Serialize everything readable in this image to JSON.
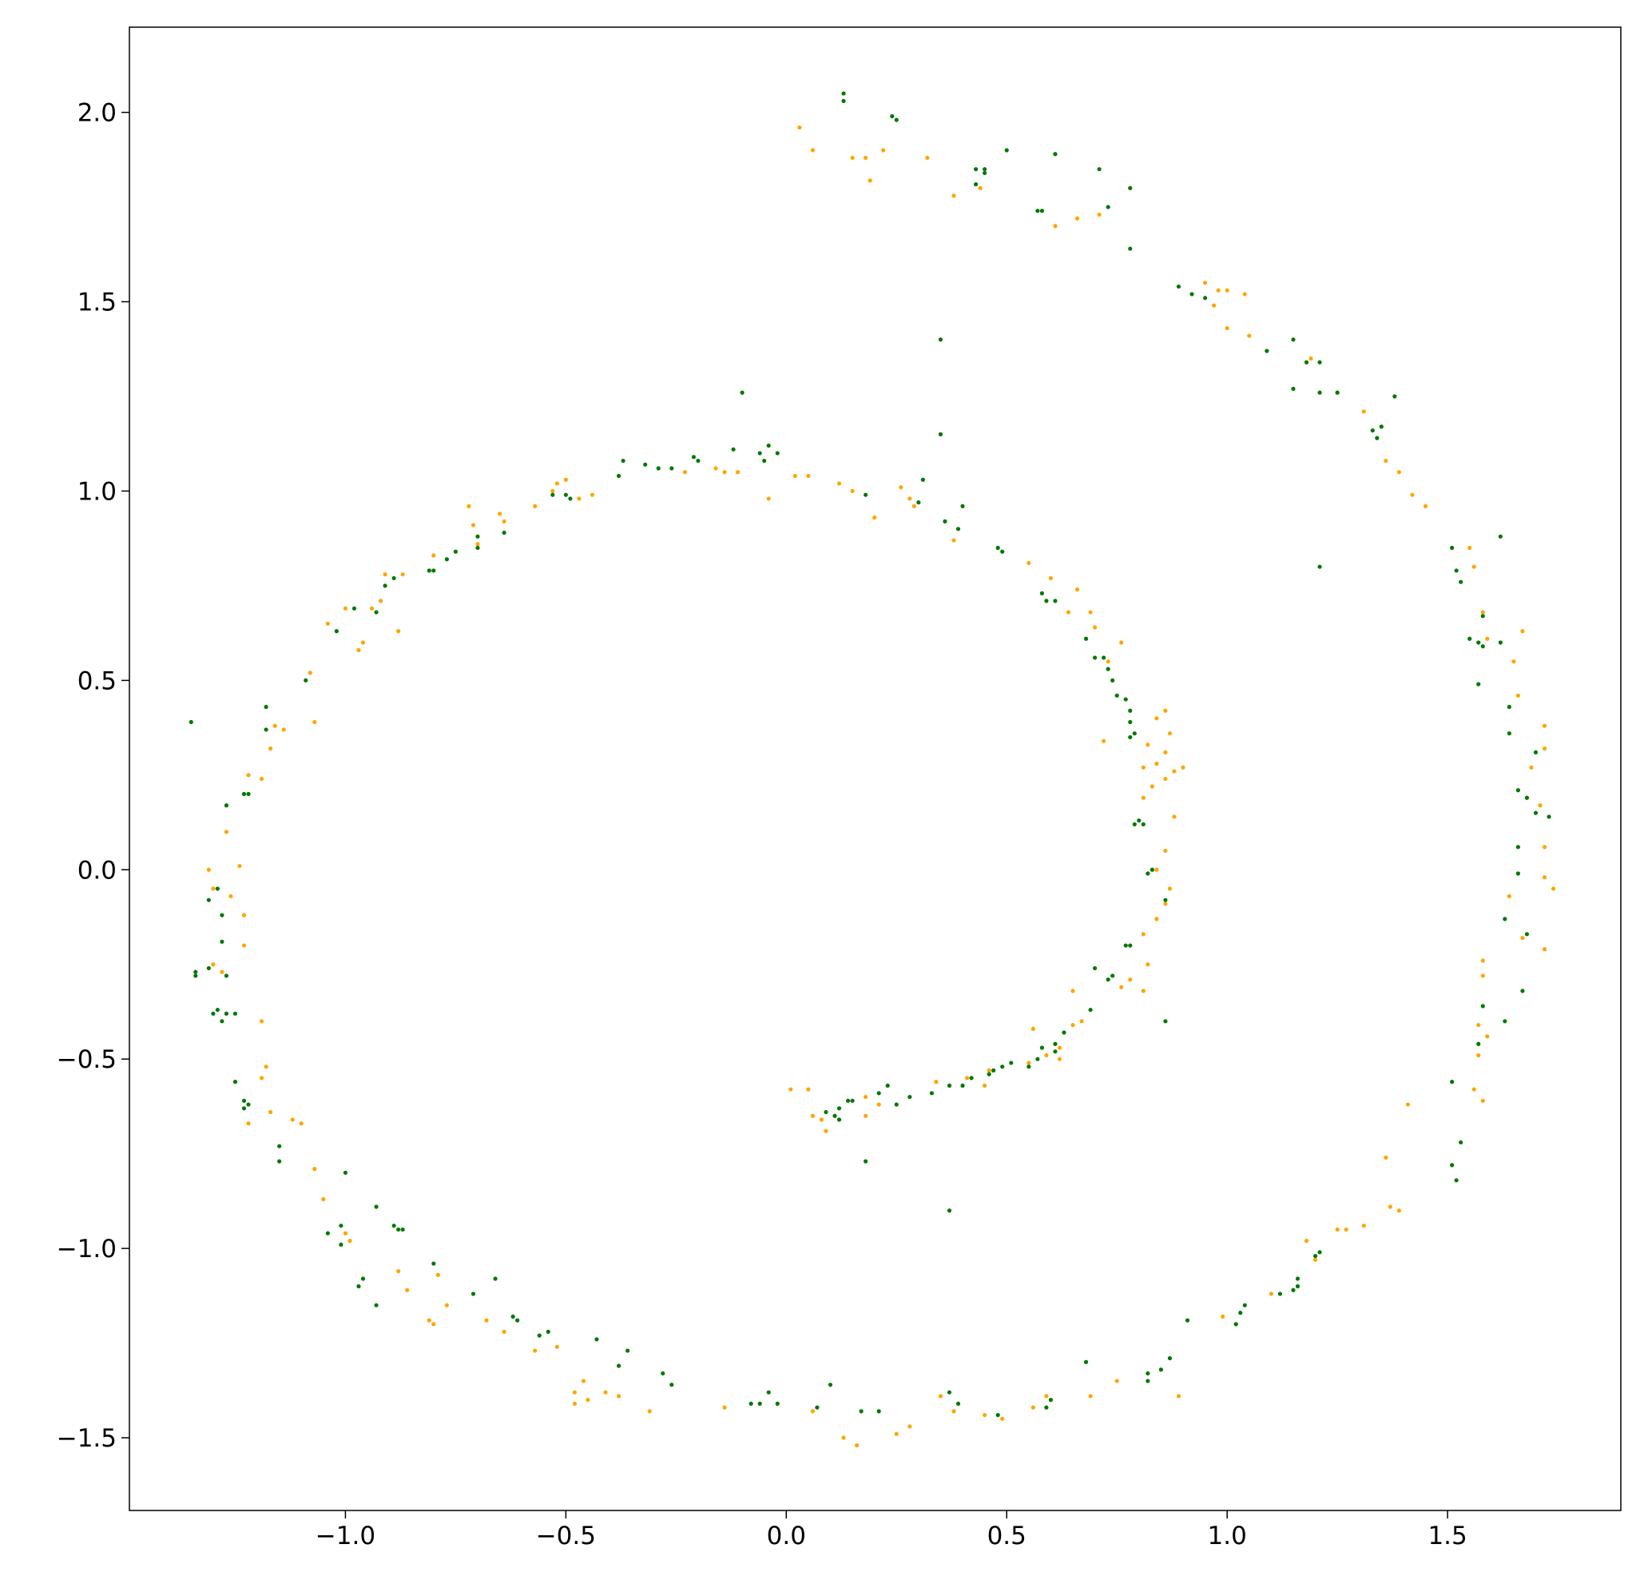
{
  "chart_data": {
    "type": "scatter",
    "xlim": [
      -1.49,
      1.893
    ],
    "ylim": [
      -1.692,
      2.225
    ],
    "xticks": [
      {
        "value": -1,
        "label": "−1.0"
      },
      {
        "value": -0.5,
        "label": "−0.5"
      },
      {
        "value": 0,
        "label": "0.0"
      },
      0.5,
      {
        "value": 1,
        "label": "1.0"
      },
      1.5
    ],
    "yticks": [
      {
        "value": -1.5,
        "label": "−1.5"
      },
      {
        "value": -1,
        "label": "−1.0"
      },
      {
        "value": -0.5,
        "label": "−0.5"
      },
      {
        "value": 0,
        "label": "0.0"
      },
      0.5,
      {
        "value": 1,
        "label": "1.0"
      },
      1.5,
      {
        "value": 2,
        "label": "2.0"
      }
    ],
    "series": [
      {
        "color": "#ffa500",
        "x": [
          0.03,
          0.06,
          0.15,
          0.19,
          0.18,
          0.22,
          0.32,
          0.38,
          0.44,
          0.61,
          0.66,
          0.71,
          0.95,
          0.98,
          1.0,
          1.04,
          0.97,
          1.0,
          1.05,
          1.19,
          1.25,
          1.31,
          1.36,
          1.39,
          1.42,
          1.45,
          1.55,
          1.56,
          1.58,
          1.59,
          1.65,
          1.67,
          1.66,
          1.69,
          1.72,
          1.72,
          1.71,
          1.72,
          1.72,
          1.74,
          1.64,
          1.67,
          1.72,
          1.58,
          1.58,
          1.57,
          1.57,
          1.59,
          1.56,
          1.58,
          1.41,
          1.36,
          1.37,
          1.39,
          1.27,
          1.25,
          1.31,
          1.18,
          1.2,
          1.1,
          1.02,
          0.99,
          0.89,
          0.75,
          0.69,
          0.59,
          0.56,
          0.49,
          0.45,
          0.38,
          0.35,
          0.28,
          0.25,
          0.16,
          0.13,
          0.06,
          -0.14,
          -0.31,
          -0.38,
          -0.41,
          -0.45,
          -0.46,
          -0.48,
          -0.48,
          -0.52,
          -0.57,
          -0.64,
          -0.68,
          -0.77,
          -0.8,
          -0.81,
          -0.79,
          -0.86,
          -0.88,
          -0.99,
          -1.0,
          -1.05,
          -1.07,
          -1.1,
          -1.12,
          -1.17,
          -1.22,
          -1.19,
          -1.18,
          -1.19,
          -1.23,
          -1.23,
          -1.24,
          -1.26,
          -1.3,
          -1.31,
          -1.28,
          -1.3,
          -1.27,
          -1.22,
          -1.19,
          -1.17,
          -1.16,
          -1.14,
          -1.08,
          -1.07,
          -1.04,
          -1.0,
          -0.97,
          -0.96,
          -0.94,
          -0.92,
          -0.91,
          -0.87,
          -0.88,
          -0.8,
          -0.72,
          -0.71,
          -0.7,
          -0.65,
          -0.64,
          -0.57,
          -0.53,
          -0.52,
          -0.5,
          -0.47,
          -0.44,
          -0.23,
          -0.16,
          -0.14,
          -0.11,
          -0.04,
          0.02,
          0.05,
          0.12,
          0.15,
          0.2,
          0.26,
          0.28,
          0.29,
          0.38,
          0.55,
          0.6,
          0.66,
          0.64,
          0.69,
          0.7,
          0.76,
          0.73,
          0.72,
          0.82,
          0.84,
          0.86,
          0.87,
          0.86,
          0.84,
          0.81,
          0.86,
          0.83,
          0.88,
          0.9,
          0.81,
          0.88,
          0.86,
          0.84,
          0.87,
          0.86,
          0.84,
          0.81,
          0.82,
          0.78,
          0.76,
          0.81,
          0.65,
          0.65,
          0.67,
          0.62,
          0.62,
          0.59,
          0.56,
          0.55,
          0.46,
          0.45,
          0.41,
          0.34,
          0.18,
          0.21,
          0.18,
          0.09,
          0.08,
          0.06,
          0.01,
          0.05
        ],
        "values": [
          1.96,
          1.9,
          1.88,
          1.82,
          1.88,
          1.9,
          1.88,
          1.78,
          1.8,
          1.7,
          1.72,
          1.73,
          1.55,
          1.53,
          1.53,
          1.52,
          1.49,
          1.43,
          1.41,
          1.35,
          1.26,
          1.21,
          1.08,
          1.05,
          0.99,
          0.96,
          0.85,
          0.8,
          0.68,
          0.61,
          0.55,
          0.63,
          0.46,
          0.27,
          0.38,
          0.32,
          0.17,
          0.06,
          -0.02,
          -0.05,
          -0.07,
          -0.18,
          -0.21,
          -0.24,
          -0.28,
          -0.41,
          -0.49,
          -0.44,
          -0.58,
          -0.61,
          -0.62,
          -0.76,
          -0.89,
          -0.9,
          -0.95,
          -0.95,
          -0.94,
          -0.98,
          -1.03,
          -1.12,
          -1.2,
          -1.18,
          -1.39,
          -1.35,
          -1.39,
          -1.39,
          -1.42,
          -1.45,
          -1.44,
          -1.43,
          -1.39,
          -1.47,
          -1.49,
          -1.52,
          -1.5,
          -1.43,
          -1.42,
          -1.43,
          -1.39,
          -1.38,
          -1.4,
          -1.35,
          -1.41,
          -1.38,
          -1.26,
          -1.27,
          -1.22,
          -1.19,
          -1.15,
          -1.2,
          -1.19,
          -1.07,
          -1.11,
          -1.06,
          -0.98,
          -0.96,
          -0.87,
          -0.79,
          -0.67,
          -0.66,
          -0.64,
          -0.67,
          -0.55,
          -0.52,
          -0.4,
          -0.2,
          -0.12,
          0.01,
          -0.07,
          -0.05,
          0.0,
          -0.27,
          -0.25,
          0.1,
          0.25,
          0.24,
          0.32,
          0.38,
          0.37,
          0.52,
          0.39,
          0.65,
          0.69,
          0.58,
          0.6,
          0.69,
          0.71,
          0.78,
          0.78,
          0.63,
          0.83,
          0.96,
          0.91,
          0.86,
          0.94,
          0.92,
          0.96,
          1.0,
          1.02,
          1.03,
          0.98,
          0.99,
          1.05,
          1.06,
          1.05,
          1.05,
          0.98,
          1.04,
          1.04,
          1.02,
          1.0,
          0.93,
          1.01,
          0.98,
          0.96,
          0.87,
          0.81,
          0.77,
          0.74,
          0.68,
          0.68,
          0.64,
          0.6,
          0.55,
          0.34,
          0.33,
          0.4,
          0.42,
          0.36,
          0.31,
          0.28,
          0.27,
          0.24,
          0.22,
          0.26,
          0.27,
          0.19,
          0.14,
          0.05,
          0.0,
          -0.05,
          -0.09,
          -0.13,
          -0.17,
          -0.25,
          -0.29,
          -0.31,
          -0.32,
          -0.32,
          -0.41,
          -0.4,
          -0.47,
          -0.5,
          -0.49,
          -0.42,
          -0.51,
          -0.53,
          -0.57,
          -0.55,
          -0.56,
          -0.6,
          -0.62,
          -0.65,
          -0.69,
          -0.66,
          -0.65,
          -0.58,
          -0.58
        ]
      },
      {
        "color": "#007800",
        "x": [
          0.13,
          0.13,
          0.24,
          0.25,
          0.5,
          0.61,
          0.43,
          0.45,
          0.45,
          0.43,
          0.71,
          0.78,
          0.57,
          0.58,
          0.73,
          0.78,
          0.35,
          0.89,
          0.92,
          0.95,
          1.09,
          1.15,
          1.18,
          1.21,
          1.15,
          1.21,
          1.25,
          1.33,
          1.38,
          1.35,
          1.34,
          1.21,
          1.51,
          1.52,
          1.62,
          1.53,
          1.55,
          1.57,
          1.58,
          1.62,
          1.58,
          1.57,
          1.64,
          1.64,
          1.7,
          1.66,
          1.68,
          1.7,
          1.73,
          1.66,
          1.66,
          1.68,
          1.63,
          1.67,
          1.63,
          1.58,
          1.57,
          1.51,
          1.53,
          1.51,
          1.52,
          1.21,
          1.2,
          1.16,
          1.16,
          1.15,
          1.12,
          1.04,
          1.02,
          1.03,
          0.91,
          0.87,
          0.85,
          0.82,
          0.82,
          0.68,
          0.6,
          0.59,
          0.48,
          0.39,
          0.37,
          0.21,
          0.17,
          0.1,
          0.07,
          -0.02,
          -0.04,
          -0.08,
          -0.06,
          -0.26,
          -0.28,
          -0.36,
          -0.38,
          -0.43,
          -0.54,
          -0.56,
          -0.61,
          -0.62,
          -0.66,
          -0.71,
          -0.8,
          -0.88,
          -0.89,
          -0.87,
          -0.93,
          -0.96,
          -0.97,
          -0.93,
          -1.0,
          -1.01,
          -1.01,
          -1.04,
          -1.15,
          -1.15,
          -1.23,
          -1.22,
          -1.25,
          -1.23,
          -1.25,
          -1.27,
          -1.28,
          -1.29,
          -1.3,
          -1.31,
          -1.27,
          -1.34,
          -1.34,
          -1.28,
          -1.28,
          -1.29,
          -1.31,
          -1.35,
          -1.27,
          -1.23,
          -1.22,
          -1.18,
          -1.18,
          -1.09,
          -1.02,
          -0.98,
          -0.91,
          -0.89,
          -0.93,
          -0.81,
          -0.8,
          -0.77,
          -0.75,
          -0.7,
          -0.7,
          -0.64,
          -0.53,
          -0.5,
          -0.49,
          -0.38,
          -0.37,
          -0.32,
          -0.29,
          -0.26,
          -0.21,
          -0.2,
          -0.12,
          -0.1,
          -0.06,
          -0.05,
          -0.04,
          -0.02,
          0.18,
          0.31,
          0.3,
          0.35,
          0.36,
          0.39,
          0.4,
          0.48,
          0.49,
          0.58,
          0.59,
          0.61,
          0.68,
          0.7,
          0.72,
          0.73,
          0.74,
          0.75,
          0.77,
          0.78,
          0.78,
          0.78,
          0.79,
          0.8,
          0.79,
          0.81,
          0.82,
          0.83,
          0.86,
          0.77,
          0.78,
          0.74,
          0.7,
          0.73,
          0.86,
          0.69,
          0.63,
          0.61,
          0.61,
          0.58,
          0.57,
          0.55,
          0.51,
          0.49,
          0.47,
          0.46,
          0.42,
          0.4,
          0.37,
          0.33,
          0.28,
          0.25,
          0.23,
          0.21,
          0.15,
          0.12,
          0.11,
          0.09,
          0.12,
          0.14,
          0.18,
          0.37
        ],
        "values": [
          2.05,
          2.03,
          1.99,
          1.98,
          1.9,
          1.89,
          1.85,
          1.84,
          1.85,
          1.81,
          1.85,
          1.8,
          1.74,
          1.74,
          1.75,
          1.64,
          1.4,
          1.54,
          1.52,
          1.51,
          1.37,
          1.4,
          1.34,
          1.34,
          1.27,
          1.26,
          1.26,
          1.16,
          1.25,
          1.17,
          1.14,
          0.8,
          0.85,
          0.79,
          0.88,
          0.76,
          0.61,
          0.6,
          0.59,
          0.6,
          0.67,
          0.49,
          0.43,
          0.36,
          0.31,
          0.21,
          0.19,
          0.15,
          0.14,
          0.06,
          -0.01,
          -0.17,
          -0.13,
          -0.32,
          -0.4,
          -0.36,
          -0.46,
          -0.56,
          -0.72,
          -0.78,
          -0.82,
          -1.01,
          -1.02,
          -1.08,
          -1.1,
          -1.11,
          -1.12,
          -1.15,
          -1.2,
          -1.17,
          -1.19,
          -1.29,
          -1.32,
          -1.33,
          -1.35,
          -1.3,
          -1.4,
          -1.42,
          -1.44,
          -1.41,
          -1.38,
          -1.43,
          -1.43,
          -1.36,
          -1.42,
          -1.41,
          -1.38,
          -1.41,
          -1.41,
          -1.36,
          -1.33,
          -1.27,
          -1.31,
          -1.24,
          -1.22,
          -1.23,
          -1.19,
          -1.18,
          -1.08,
          -1.12,
          -1.04,
          -0.95,
          -0.94,
          -0.95,
          -0.89,
          -1.08,
          -1.1,
          -1.15,
          -0.8,
          -0.94,
          -0.99,
          -0.96,
          -0.73,
          -0.77,
          -0.61,
          -0.62,
          -0.56,
          -0.63,
          -0.38,
          -0.38,
          -0.4,
          -0.37,
          -0.38,
          -0.26,
          -0.28,
          -0.28,
          -0.27,
          -0.19,
          -0.12,
          -0.05,
          -0.08,
          0.39,
          0.17,
          0.2,
          0.2,
          0.37,
          0.43,
          0.5,
          0.63,
          0.69,
          0.75,
          0.77,
          0.68,
          0.79,
          0.79,
          0.82,
          0.84,
          0.88,
          0.85,
          0.89,
          0.99,
          0.99,
          0.98,
          1.04,
          1.08,
          1.07,
          1.06,
          1.06,
          1.09,
          1.08,
          1.11,
          1.26,
          1.1,
          1.08,
          1.12,
          1.1,
          0.99,
          1.03,
          0.97,
          1.15,
          0.92,
          0.9,
          0.96,
          0.85,
          0.84,
          0.73,
          0.71,
          0.71,
          0.61,
          0.56,
          0.56,
          0.53,
          0.5,
          0.46,
          0.45,
          0.42,
          0.39,
          0.35,
          0.36,
          0.13,
          0.12,
          0.12,
          -0.01,
          0.0,
          -0.08,
          -0.2,
          -0.2,
          -0.28,
          -0.26,
          -0.29,
          -0.4,
          -0.37,
          -0.43,
          -0.46,
          -0.48,
          -0.47,
          -0.5,
          -0.52,
          -0.51,
          -0.52,
          -0.53,
          -0.54,
          -0.55,
          -0.57,
          -0.57,
          -0.59,
          -0.6,
          -0.62,
          -0.57,
          -0.59,
          -0.61,
          -0.63,
          -0.65,
          -0.64,
          -0.66,
          -0.61,
          -0.77,
          -0.9
        ]
      }
    ]
  }
}
